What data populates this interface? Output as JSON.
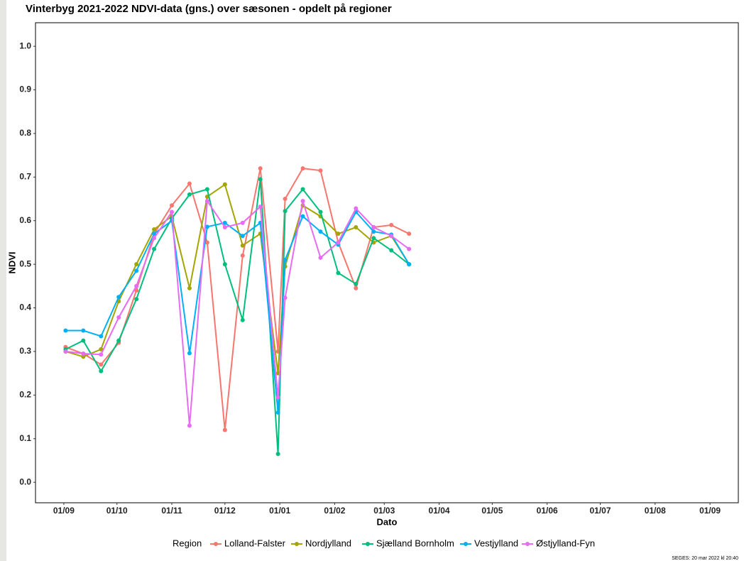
{
  "chart_data": {
    "type": "line",
    "title": "Vinterbyg 2021-2022 NDVI-data (gns.) over sæsonen - opdelt på regioner",
    "x_label": "Dato",
    "y_label": "NDVI",
    "legend_title": "Region",
    "footer": "SEGES:  20 mar 2022 kl 20:40",
    "x": [
      "02/09",
      "12/09",
      "22/09",
      "02/10",
      "12/10",
      "22/10",
      "01/11",
      "11/11",
      "21/11",
      "01/12",
      "11/12",
      "21/12",
      "31/12",
      "04/01",
      "14/01",
      "24/01",
      "03/02",
      "13/02",
      "23/02",
      "05/03",
      "15/03"
    ],
    "xlim": [
      "16/08",
      "17/09"
    ],
    "xticks": [
      "01/09",
      "01/10",
      "01/11",
      "01/12",
      "01/01",
      "01/02",
      "01/03",
      "01/04",
      "01/05",
      "01/06",
      "01/07",
      "01/08",
      "01/09"
    ],
    "ylim": [
      -0.047,
      1.054
    ],
    "yticks": [
      {
        "value": 0,
        "label": "0.0"
      },
      0.1,
      0.2,
      0.3,
      0.4,
      0.5,
      0.6,
      0.7,
      0.8,
      0.9,
      {
        "value": 1,
        "label": "1.0"
      }
    ],
    "grid": false,
    "legend": "bottom",
    "series": [
      {
        "name": "Lolland-Falster",
        "color": "#F8766D",
        "values": [
          0.31,
          0.295,
          0.27,
          0.32,
          0.44,
          0.57,
          0.635,
          0.685,
          0.55,
          0.12,
          0.52,
          0.72,
          0.3,
          0.65,
          0.72,
          0.715,
          0.55,
          0.445,
          0.585,
          0.59,
          0.57
        ]
      },
      {
        "name": "Nordjylland",
        "color": "#A3A500",
        "values": [
          0.3,
          0.288,
          0.305,
          0.415,
          0.5,
          0.58,
          0.61,
          0.445,
          0.655,
          0.683,
          0.543,
          0.57,
          0.25,
          0.495,
          0.635,
          0.61,
          0.57,
          0.585,
          0.55,
          0.565,
          0.5
        ]
      },
      {
        "name": "Sjælland Bornholm",
        "color": "#00BF7D",
        "values": [
          0.305,
          0.325,
          0.255,
          0.325,
          0.42,
          0.535,
          0.605,
          0.66,
          0.672,
          0.5,
          0.372,
          0.695,
          0.065,
          0.622,
          0.672,
          0.62,
          0.48,
          0.455,
          0.56,
          0.532,
          0.5
        ]
      },
      {
        "name": "Vestjylland",
        "color": "#00B0F6",
        "values": [
          0.348,
          0.348,
          0.335,
          0.425,
          0.485,
          0.57,
          0.6,
          0.296,
          0.586,
          0.595,
          0.565,
          0.595,
          0.16,
          0.51,
          0.61,
          0.575,
          0.545,
          0.62,
          0.575,
          0.568,
          0.5
        ]
      },
      {
        "name": "Østjylland-Fyn",
        "color": "#E76BF3",
        "values": [
          0.3,
          0.295,
          0.293,
          0.378,
          0.45,
          0.56,
          0.62,
          0.13,
          0.645,
          0.585,
          0.595,
          0.632,
          0.195,
          0.423,
          0.645,
          0.515,
          0.55,
          0.628,
          0.585,
          0.565,
          0.535
        ]
      }
    ]
  }
}
